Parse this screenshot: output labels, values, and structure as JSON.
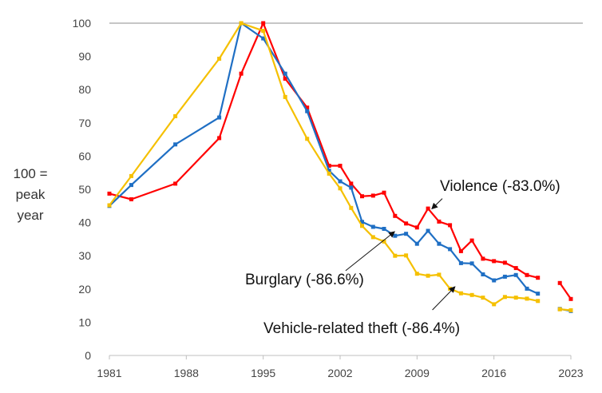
{
  "chart_data": {
    "type": "line",
    "title": "",
    "xlabel": "",
    "ylabel": [
      "100 =",
      "peak",
      "year"
    ],
    "xlim": [
      1981,
      2023
    ],
    "ylim": [
      0,
      100
    ],
    "x_ticks": [
      1981,
      1988,
      1995,
      2002,
      2009,
      2016,
      2023
    ],
    "y_ticks": [
      0,
      10,
      20,
      30,
      40,
      50,
      60,
      70,
      80,
      90,
      100
    ],
    "grid": "reference line at 100 only",
    "legend": "none (series labeled by annotations with arrows)",
    "series": [
      {
        "name": "Violence",
        "color": "#ff0000",
        "points": [
          [
            1981,
            48.7
          ],
          [
            1983,
            47
          ],
          [
            1987,
            51.7
          ],
          [
            1991,
            65.4
          ],
          [
            1993,
            84.8
          ],
          [
            1995,
            100
          ],
          [
            1997,
            83.3
          ],
          [
            1999,
            74.6
          ],
          [
            2001,
            57.1
          ],
          [
            2002,
            57.1
          ],
          [
            2003,
            51.7
          ],
          [
            2004,
            47.9
          ],
          [
            2005,
            48.1
          ],
          [
            2006,
            49
          ],
          [
            2007,
            42
          ],
          [
            2008,
            39.7
          ],
          [
            2009,
            38.5
          ],
          [
            2010,
            44.2
          ],
          [
            2011,
            40.3
          ],
          [
            2012,
            39.2
          ],
          [
            2013,
            31.4
          ],
          [
            2014,
            34.6
          ],
          [
            2015,
            29.1
          ],
          [
            2016,
            28.4
          ],
          [
            2017,
            27.9
          ],
          [
            2018,
            26.3
          ],
          [
            2019,
            24.2
          ],
          [
            2020,
            23.4
          ],
          [
            2022,
            21.8
          ],
          [
            2023,
            17
          ]
        ]
      },
      {
        "name": "Burglary",
        "color": "#1f6fc4",
        "points": [
          [
            1981,
            45
          ],
          [
            1983,
            51.3
          ],
          [
            1987,
            63.5
          ],
          [
            1991,
            71.6
          ],
          [
            1993,
            100
          ],
          [
            1995,
            95.4
          ],
          [
            1997,
            84.8
          ],
          [
            1999,
            73.5
          ],
          [
            2001,
            55.6
          ],
          [
            2002,
            52.4
          ],
          [
            2003,
            50.5
          ],
          [
            2004,
            40.2
          ],
          [
            2005,
            38.7
          ],
          [
            2006,
            38.1
          ],
          [
            2007,
            36
          ],
          [
            2008,
            36.6
          ],
          [
            2009,
            33.6
          ],
          [
            2010,
            37.5
          ],
          [
            2011,
            33.6
          ],
          [
            2012,
            32
          ],
          [
            2013,
            27.8
          ],
          [
            2014,
            27.7
          ],
          [
            2015,
            24.4
          ],
          [
            2016,
            22.6
          ],
          [
            2017,
            23.7
          ],
          [
            2018,
            24.2
          ],
          [
            2019,
            20.1
          ],
          [
            2020,
            18.6
          ],
          [
            2022,
            14
          ],
          [
            2023,
            13.4
          ]
        ]
      },
      {
        "name": "Vehicle-related theft",
        "color": "#f5c000",
        "points": [
          [
            1981,
            45.2
          ],
          [
            1983,
            54
          ],
          [
            1987,
            72
          ],
          [
            1991,
            89.3
          ],
          [
            1993,
            100
          ],
          [
            1995,
            97.7
          ],
          [
            1997,
            77.8
          ],
          [
            1999,
            65.2
          ],
          [
            2001,
            54.7
          ],
          [
            2002,
            50.3
          ],
          [
            2003,
            44.4
          ],
          [
            2004,
            39
          ],
          [
            2005,
            35.6
          ],
          [
            2006,
            34.3
          ],
          [
            2007,
            30
          ],
          [
            2008,
            30.1
          ],
          [
            2009,
            24.6
          ],
          [
            2010,
            24
          ],
          [
            2011,
            24.3
          ],
          [
            2012,
            20.1
          ],
          [
            2013,
            18.7
          ],
          [
            2014,
            18.2
          ],
          [
            2015,
            17.4
          ],
          [
            2016,
            15.4
          ],
          [
            2017,
            17.6
          ],
          [
            2018,
            17.4
          ],
          [
            2019,
            17.1
          ],
          [
            2020,
            16.4
          ],
          [
            2022,
            13.9
          ],
          [
            2023,
            13.6
          ]
        ]
      }
    ],
    "annotations": [
      {
        "series": "Violence",
        "text": "Violence (-83.0%)",
        "arrow_from": [
          2011.3,
          47.2
        ],
        "arrow_to": [
          2010.4,
          44.3
        ]
      },
      {
        "series": "Burglary",
        "text": "Burglary (-86.6%)",
        "arrow_from": [
          2002.5,
          25.5
        ],
        "arrow_to": [
          2006.9,
          37.1
        ]
      },
      {
        "series": "Vehicle-related theft",
        "text": "Vehicle-related theft (-86.4%)",
        "arrow_from": [
          2010.4,
          13.7
        ],
        "arrow_to": [
          2012.4,
          20.5
        ]
      }
    ]
  }
}
